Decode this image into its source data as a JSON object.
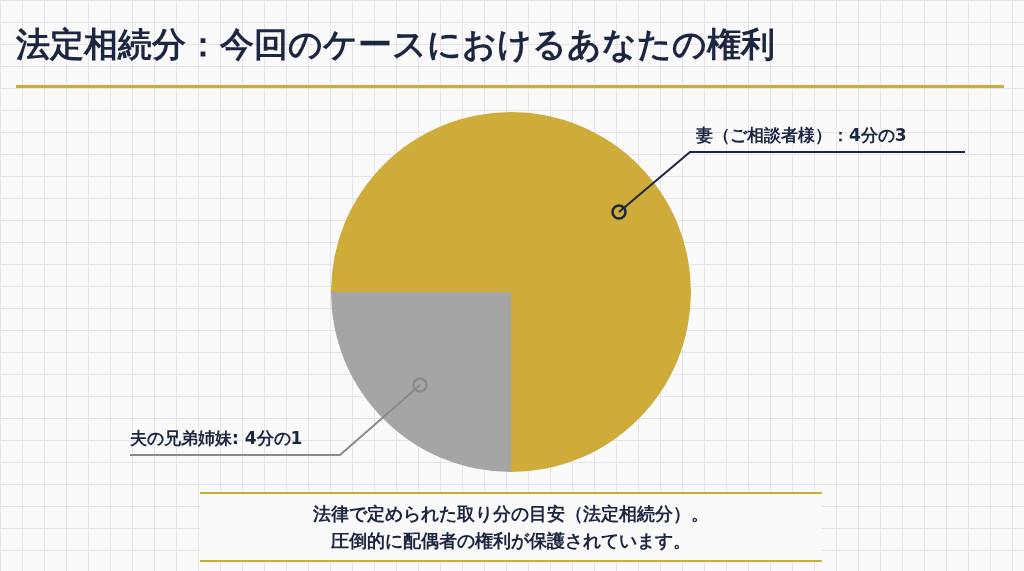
{
  "chart_data": {
    "type": "pie",
    "title": "法定相続分：今回のケースにおけるあなたの権利",
    "categories": [
      "妻（ご相談者様）：4分の3",
      "夫の兄弟姉妹: 4分の1"
    ],
    "values": [
      75,
      25
    ],
    "colors": [
      "#cfab3a",
      "#a5a5a5"
    ],
    "annotations": [
      "法律で定められた取り分の目安（法定相続分）。",
      "圧倒的に配偶者の権利が保護されています。"
    ]
  }
}
